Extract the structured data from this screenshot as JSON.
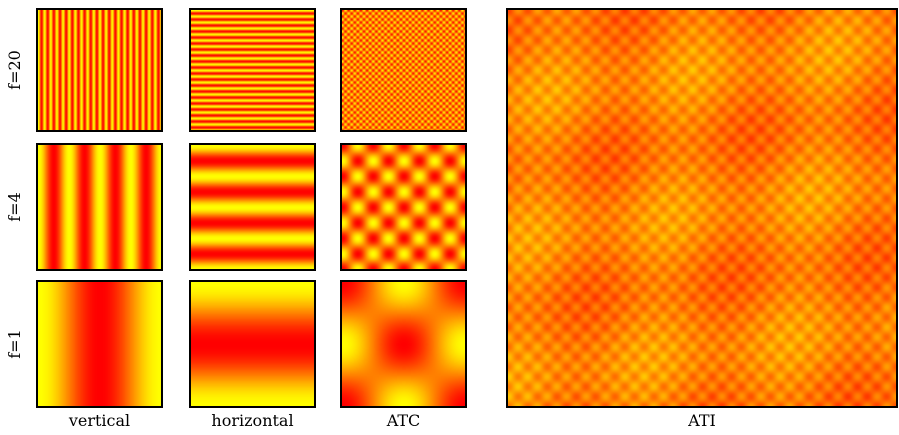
{
  "row_labels": [
    "f=20",
    "f=4",
    "f=1"
  ],
  "column_labels": [
    "vertical",
    "horizontal",
    "ATC",
    "ATI"
  ],
  "colors": {
    "low": "#ffff00",
    "high": "#ff0000",
    "border": "#000000"
  },
  "panels": [
    {
      "pattern": "vertical",
      "frequency": 20
    },
    {
      "pattern": "horizontal",
      "frequency": 20
    },
    {
      "pattern": "ATC",
      "frequency": 20
    },
    {
      "pattern": "vertical",
      "frequency": 4
    },
    {
      "pattern": "horizontal",
      "frequency": 4
    },
    {
      "pattern": "ATC",
      "frequency": 4
    },
    {
      "pattern": "vertical",
      "frequency": 1
    },
    {
      "pattern": "horizontal",
      "frequency": 1
    },
    {
      "pattern": "ATC",
      "frequency": 1
    },
    {
      "pattern": "ATI",
      "frequency": 20
    }
  ]
}
